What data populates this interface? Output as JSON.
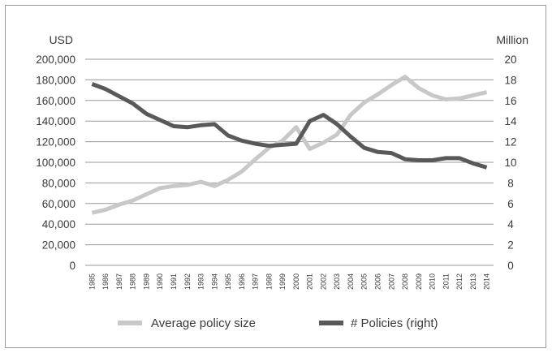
{
  "chart_data": {
    "type": "line",
    "y_left_unit": "USD",
    "y_right_unit": "Million",
    "y_left_ticks": [
      "200,000",
      "180,000",
      "160,000",
      "140,000",
      "120,000",
      "100,000",
      "80,000",
      "60,000",
      "40,000",
      "20,000",
      "0"
    ],
    "y_right_ticks": [
      "20",
      "18",
      "16",
      "14",
      "12",
      "10",
      "8",
      "6",
      "4",
      "2",
      "0"
    ],
    "ylim_left": [
      0,
      200000
    ],
    "ylim_right": [
      0,
      20
    ],
    "grid": "horizontal",
    "legend_position": "bottom",
    "x": [
      "1985",
      "1986",
      "1987",
      "1988",
      "1989",
      "1990",
      "1991",
      "1992",
      "1993",
      "1994",
      "1995",
      "1996",
      "1997",
      "1998",
      "1999",
      "2000",
      "2001",
      "2002",
      "2003",
      "2004",
      "2005",
      "2006",
      "2007",
      "2008",
      "2009",
      "2010",
      "2011",
      "2012",
      "2013",
      "2014"
    ],
    "series": [
      {
        "name": "Average policy size",
        "axis": "left",
        "color": "#c8c8c8",
        "values": [
          51000,
          54000,
          59000,
          63000,
          69000,
          75000,
          77000,
          78000,
          81000,
          77000,
          83000,
          91000,
          103000,
          114000,
          121000,
          134000,
          113000,
          119000,
          127000,
          146000,
          158000,
          166000,
          175000,
          183000,
          172000,
          165000,
          161000,
          162000,
          165000,
          168000
        ]
      },
      {
        "name": "# Policies (right)",
        "axis": "right",
        "color": "#595959",
        "values": [
          17.6,
          17.1,
          16.4,
          15.7,
          14.7,
          14.1,
          13.5,
          13.4,
          13.6,
          13.7,
          12.6,
          12.1,
          11.8,
          11.6,
          11.7,
          11.8,
          14.0,
          14.6,
          13.7,
          12.5,
          11.4,
          11.0,
          10.9,
          10.3,
          10.2,
          10.2,
          10.4,
          10.4,
          9.9,
          9.5
        ]
      }
    ]
  }
}
